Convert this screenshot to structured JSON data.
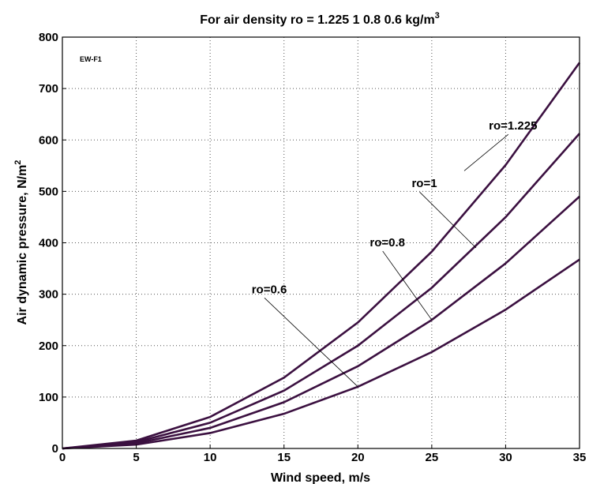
{
  "chart_data": {
    "type": "line",
    "title": "For air density ro = 1.225  1  0.8  0.6 kg/m",
    "title_superscript": "3",
    "xlabel": "Wind speed, m/s",
    "ylabel": "Air dynamic pressure, N/m",
    "ylabel_superscript": "2",
    "xlim": [
      0,
      35
    ],
    "ylim": [
      0,
      800
    ],
    "xticks": [
      0,
      5,
      10,
      15,
      20,
      25,
      30,
      35
    ],
    "yticks": [
      0,
      100,
      200,
      300,
      400,
      500,
      600,
      700,
      800
    ],
    "grid": true,
    "annotation": "EW-F1",
    "x": [
      0,
      5,
      10,
      15,
      20,
      25,
      30,
      35
    ],
    "series": [
      {
        "name": "ro=1.225",
        "values": [
          0,
          15.3,
          61.3,
          137.8,
          245,
          382.8,
          551.3,
          750.3
        ],
        "label_at": [
          30.5,
          620
        ],
        "leader_to": [
          27.2,
          540
        ]
      },
      {
        "name": "ro=1",
        "values": [
          0,
          12.5,
          50,
          112.5,
          200,
          312.5,
          450,
          612.5
        ],
        "label_at": [
          24.5,
          508
        ],
        "leader_to": [
          28.0,
          390
        ]
      },
      {
        "name": "ro=0.8",
        "values": [
          0,
          10,
          40,
          90,
          160,
          250,
          360,
          490
        ],
        "label_at": [
          22.0,
          393
        ],
        "leader_to": [
          25.0,
          250
        ]
      },
      {
        "name": "ro=0.6",
        "values": [
          0,
          7.5,
          30,
          67.5,
          120,
          187.5,
          270,
          367.5
        ],
        "label_at": [
          14.0,
          302
        ],
        "leader_to": [
          20.0,
          120
        ]
      }
    ]
  }
}
